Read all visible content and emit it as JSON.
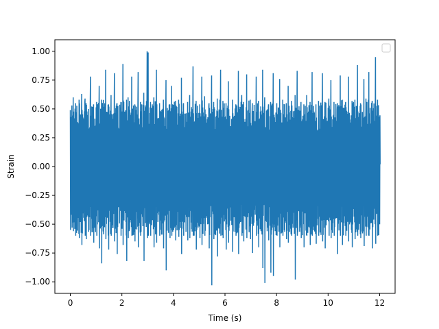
{
  "chart_data": {
    "type": "line",
    "title": "",
    "xlabel": "Time (s)",
    "ylabel": "Strain",
    "xlim": [
      -0.6,
      12.6
    ],
    "ylim": [
      -1.1,
      1.1
    ],
    "xticks": [
      0,
      2,
      4,
      6,
      8,
      10,
      12
    ],
    "xtick_labels": [
      "0",
      "2",
      "4",
      "6",
      "8",
      "10",
      "12"
    ],
    "yticks": [
      -1.0,
      -0.75,
      -0.5,
      -0.25,
      0.0,
      0.25,
      0.5,
      0.75,
      1.0
    ],
    "ytick_labels": [
      "−1.00",
      "−0.75",
      "−0.50",
      "−0.25",
      "0.00",
      "0.25",
      "0.50",
      "0.75",
      "1.00"
    ],
    "grid": false,
    "legend": {
      "placement": "top-right",
      "entries": []
    },
    "series": [
      {
        "color": "#1f77b4",
        "x": [
          0,
          0.06,
          0.11,
          0.2,
          0.34,
          0.44,
          0.57,
          0.61,
          0.78,
          0.9,
          1.02,
          1.12,
          1.21,
          1.37,
          1.48,
          1.58,
          1.71,
          1.81,
          1.96,
          2.04,
          2.18,
          2.24,
          2.38,
          2.5,
          2.63,
          2.72,
          2.85,
          2.98,
          3.02,
          3.11,
          3.24,
          3.34,
          3.46,
          3.61,
          3.71,
          3.86,
          3.93,
          4.08,
          4.2,
          4.31,
          4.39,
          4.55,
          4.63,
          4.76,
          4.88,
          5.02,
          5.1,
          5.21,
          5.38,
          5.48,
          5.56,
          5.7,
          5.83,
          5.92,
          6.04,
          6.13,
          6.29,
          6.42,
          6.52,
          6.65,
          6.72,
          6.84,
          6.98,
          7.06,
          7.21,
          7.3,
          7.46,
          7.54,
          7.69,
          7.77,
          7.87,
          8.01,
          8.12,
          8.24,
          8.38,
          8.45,
          8.58,
          8.72,
          8.8,
          8.95,
          9.06,
          9.17,
          9.3,
          9.38,
          9.53,
          9.63,
          9.78,
          9.88,
          10.03,
          10.11,
          10.23,
          10.36,
          10.47,
          10.55,
          10.68,
          10.79,
          10.93,
          11.04,
          11.14,
          11.26,
          11.39,
          11.47,
          11.58,
          11.71,
          11.84,
          11.92,
          12.02
        ],
        "y_envelope_max": [
          0.49,
          0.53,
          0.6,
          0.55,
          0.58,
          0.63,
          0.59,
          0.55,
          0.78,
          0.54,
          0.56,
          0.7,
          0.58,
          0.84,
          0.54,
          0.62,
          0.81,
          0.55,
          0.56,
          0.89,
          0.58,
          0.6,
          0.78,
          0.54,
          0.82,
          0.56,
          0.64,
          1.0,
          0.99,
          0.56,
          0.6,
          0.84,
          0.55,
          0.58,
          0.75,
          0.54,
          0.7,
          0.57,
          0.58,
          0.77,
          0.55,
          0.56,
          0.62,
          0.87,
          0.57,
          0.54,
          0.78,
          0.61,
          0.55,
          0.79,
          0.56,
          0.59,
          0.84,
          0.57,
          0.55,
          0.74,
          0.58,
          0.54,
          0.83,
          0.62,
          0.56,
          0.8,
          0.58,
          0.55,
          0.78,
          0.57,
          0.84,
          0.6,
          0.54,
          0.56,
          0.81,
          0.55,
          0.76,
          0.58,
          0.55,
          0.7,
          0.57,
          0.62,
          0.83,
          0.56,
          0.54,
          0.62,
          0.56,
          0.82,
          0.54,
          0.57,
          0.81,
          0.56,
          0.59,
          0.75,
          0.56,
          0.55,
          0.79,
          0.58,
          0.56,
          0.78,
          0.57,
          0.58,
          0.88,
          0.55,
          0.76,
          0.59,
          0.82,
          0.57,
          0.95,
          0.58,
          0.54
        ],
        "y_envelope_min": [
          -0.55,
          -0.53,
          -0.56,
          -0.6,
          -0.62,
          -0.68,
          -0.6,
          -0.63,
          -0.6,
          -0.66,
          -0.6,
          -0.71,
          -0.84,
          -0.63,
          -0.72,
          -0.6,
          -0.65,
          -0.76,
          -0.6,
          -0.68,
          -0.82,
          -0.62,
          -0.6,
          -0.65,
          -0.7,
          -0.6,
          -0.82,
          -0.62,
          -0.6,
          -0.6,
          -0.7,
          -0.66,
          -0.6,
          -0.71,
          -0.9,
          -0.62,
          -0.6,
          -0.64,
          -0.61,
          -0.76,
          -0.6,
          -0.64,
          -0.62,
          -0.6,
          -0.72,
          -0.62,
          -0.68,
          -0.6,
          -0.71,
          -1.03,
          -0.63,
          -0.78,
          -0.6,
          -0.62,
          -0.72,
          -0.66,
          -0.74,
          -0.6,
          -0.76,
          -0.6,
          -0.65,
          -0.62,
          -0.63,
          -0.75,
          -0.6,
          -0.7,
          -0.88,
          -1.01,
          -0.64,
          -0.92,
          -0.95,
          -0.6,
          -0.7,
          -0.6,
          -0.63,
          -0.66,
          -0.6,
          -0.98,
          -0.6,
          -0.62,
          -0.7,
          -0.6,
          -0.68,
          -0.6,
          -0.67,
          -0.6,
          -0.65,
          -0.71,
          -0.6,
          -0.62,
          -0.6,
          -0.76,
          -0.6,
          -0.68,
          -0.6,
          -0.65,
          -0.7,
          -0.63,
          -0.6,
          -0.62,
          -0.69,
          -0.6,
          -0.6,
          -0.71,
          -0.67,
          -0.6,
          -0.64
        ]
      }
    ]
  }
}
